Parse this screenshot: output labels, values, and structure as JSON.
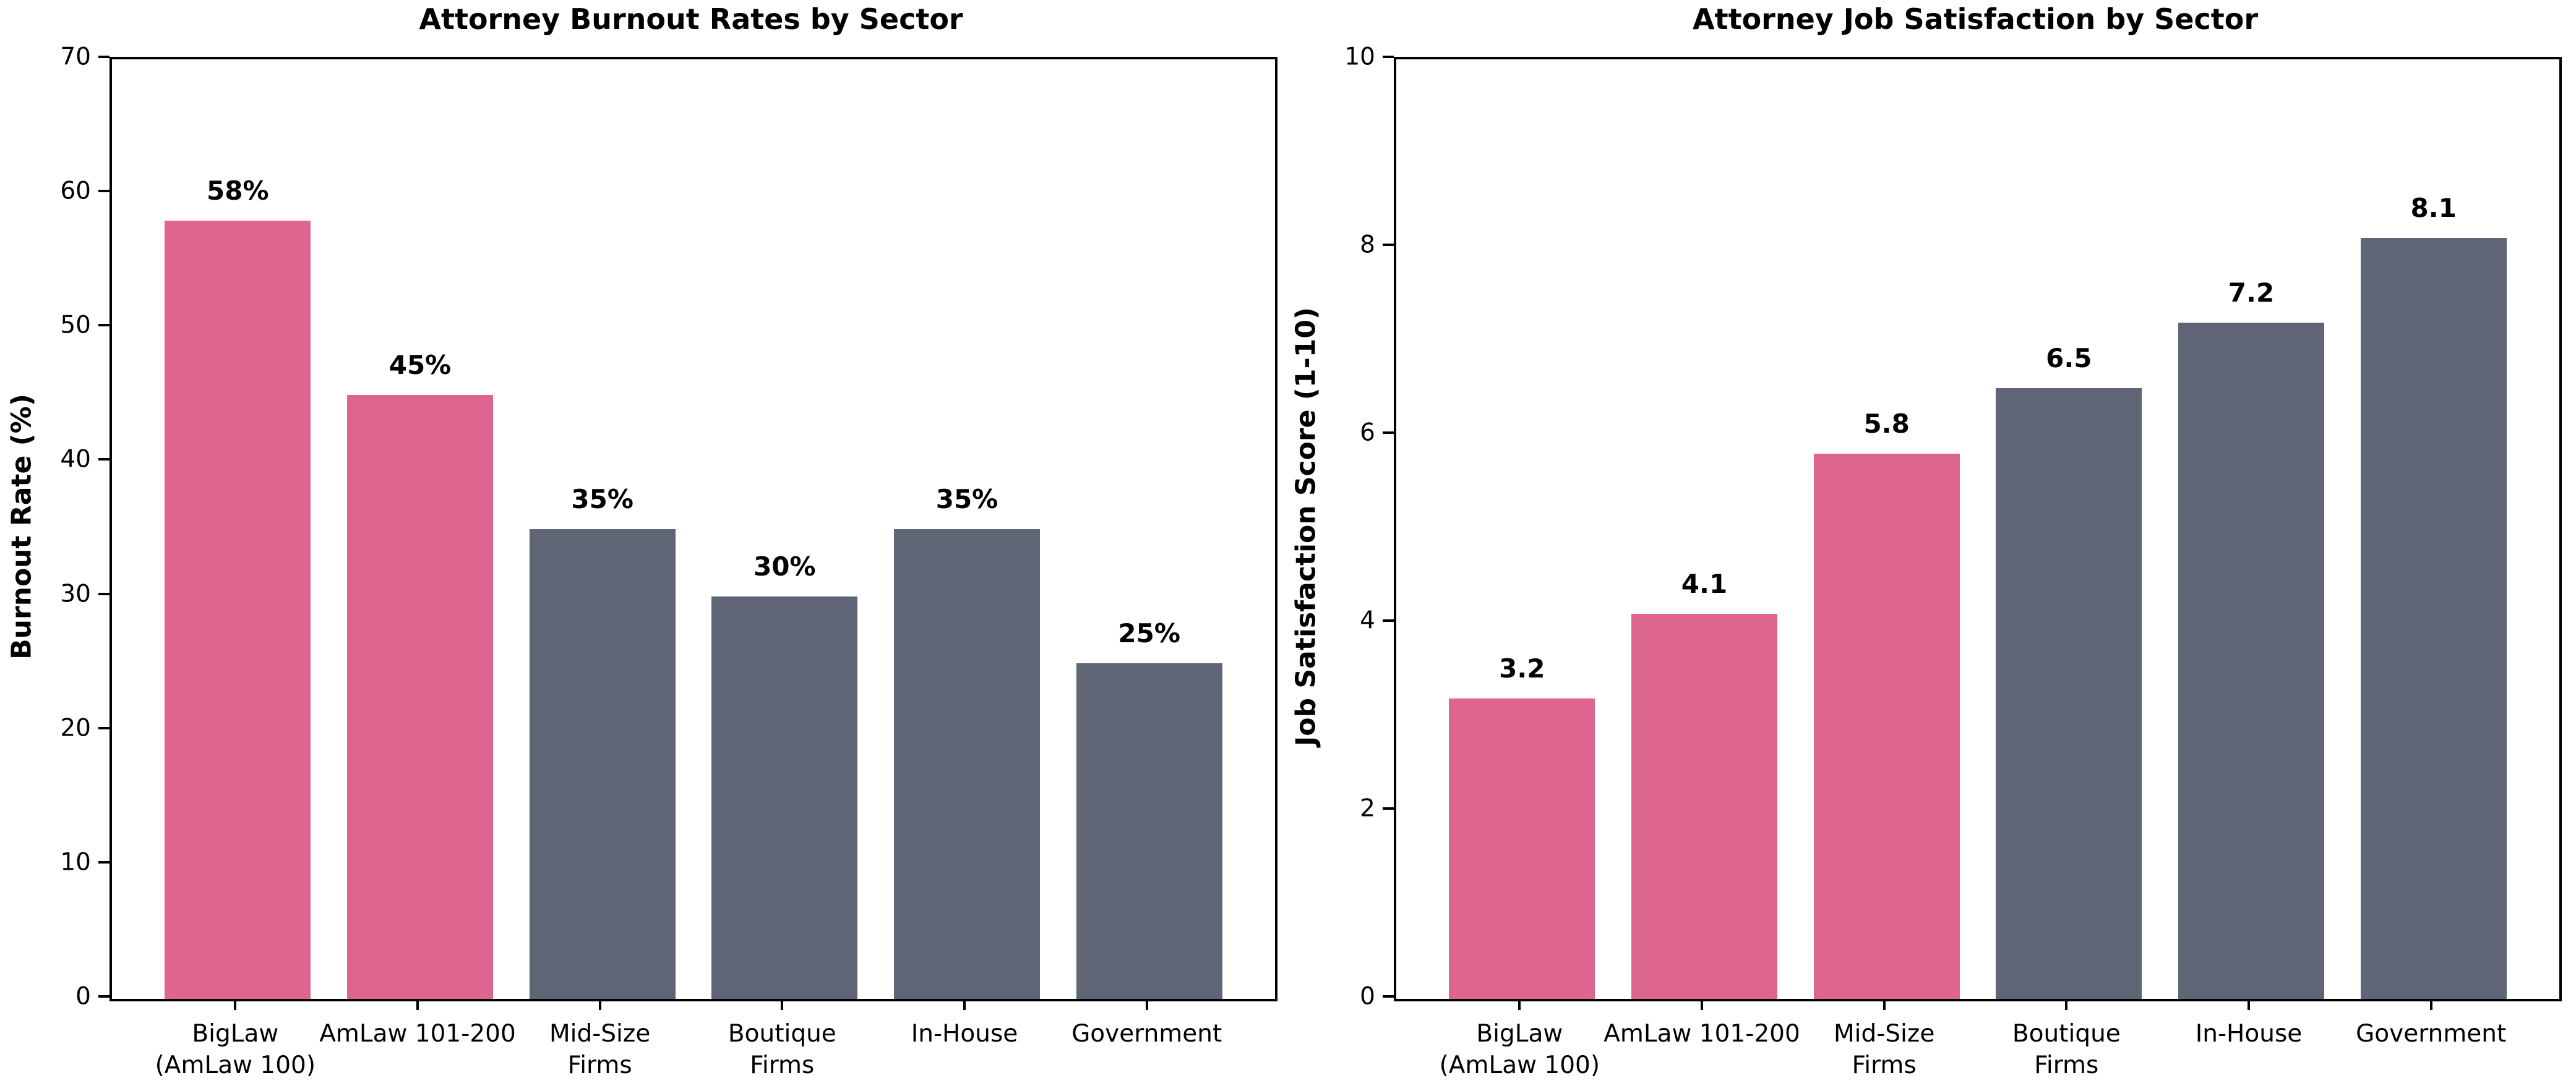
{
  "figure": {
    "background": "#ffffff",
    "text_color": "#000000",
    "colors": {
      "highlight": "#de6590",
      "base": "#5f6575"
    }
  },
  "chart_data": [
    {
      "type": "bar",
      "title": "Attorney Burnout Rates by Sector",
      "xlabel": "",
      "ylabel": "Burnout Rate (%)",
      "categories": [
        "BigLaw\n(AmLaw 100)",
        "AmLaw 101-200",
        "Mid-Size\nFirms",
        "Boutique\nFirms",
        "In-House",
        "Government"
      ],
      "values": [
        58,
        45,
        35,
        30,
        35,
        25
      ],
      "value_labels": [
        "58%",
        "45%",
        "35%",
        "30%",
        "35%",
        "25%"
      ],
      "bar_colors": [
        "highlight",
        "highlight",
        "base",
        "base",
        "base",
        "base"
      ],
      "ylim": [
        0,
        70
      ],
      "yticks": [
        0,
        10,
        20,
        30,
        40,
        50,
        60,
        70
      ],
      "grid": false,
      "legend": null
    },
    {
      "type": "bar",
      "title": "Attorney Job Satisfaction by Sector",
      "xlabel": "",
      "ylabel": "Job Satisfaction Score (1-10)",
      "categories": [
        "BigLaw\n(AmLaw 100)",
        "AmLaw 101-200",
        "Mid-Size\nFirms",
        "Boutique\nFirms",
        "In-House",
        "Government"
      ],
      "values": [
        3.2,
        4.1,
        5.8,
        6.5,
        7.2,
        8.1
      ],
      "value_labels": [
        "3.2",
        "4.1",
        "5.8",
        "6.5",
        "7.2",
        "8.1"
      ],
      "bar_colors": [
        "highlight",
        "highlight",
        "highlight",
        "base",
        "base",
        "base"
      ],
      "ylim": [
        0,
        10
      ],
      "yticks": [
        0,
        2,
        4,
        6,
        8,
        10
      ],
      "grid": false,
      "legend": null
    }
  ]
}
